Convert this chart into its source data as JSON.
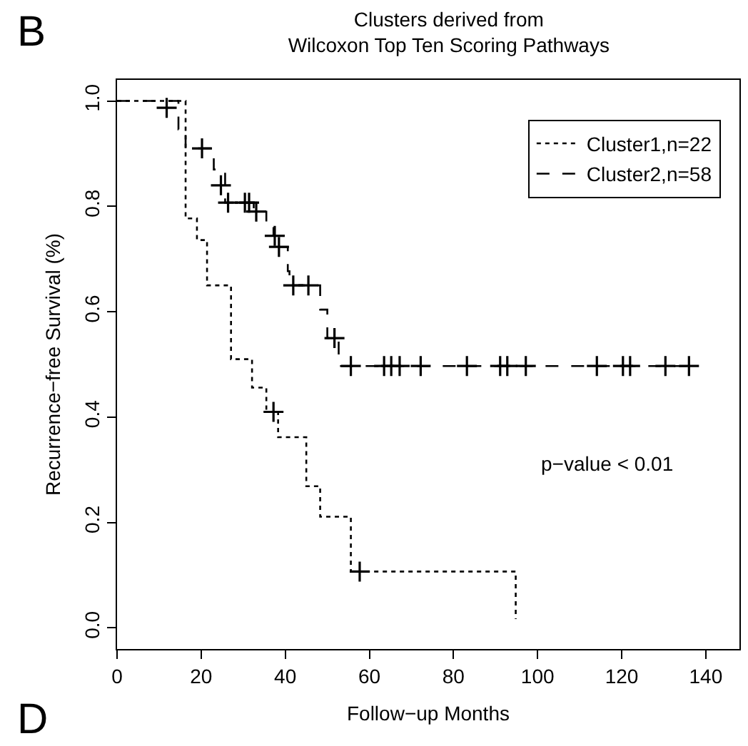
{
  "chart_data": {
    "type": "step",
    "title": "Clusters derived from\nWilcoxon Top Ten Scoring Pathways",
    "xlabel": "Follow−up Months",
    "ylabel": "Recurrence−free Survival (%)",
    "series": [
      {
        "name": "Cluster1,n=22",
        "color": "#000000",
        "line_style": "dotted",
        "marker": "none",
        "x": [
          0,
          16.3,
          19,
          21.4,
          27.1,
          32.1,
          35.5,
          38.3,
          45,
          48.3,
          55.6,
          94.8
        ],
        "values": [
          1,
          0.777,
          0.736,
          0.65,
          0.51,
          0.456,
          0.41,
          0.362,
          0.269,
          0.211,
          0.107,
          0.017
        ]
      },
      {
        "name": "Cluster2,n=58",
        "color": "#000000",
        "line_style": "dashed",
        "marker": "none",
        "x": [
          0,
          14.6,
          16.3,
          23,
          25.7,
          32.5,
          35.5,
          37.2,
          38.2,
          40.6,
          41,
          48.3,
          50,
          52.7,
          136
        ],
        "values": [
          1,
          0.946,
          0.91,
          0.87,
          0.807,
          0.79,
          0.771,
          0.744,
          0.723,
          0.677,
          0.65,
          0.604,
          0.55,
          0.497,
          0.497
        ]
      },
      {
        "type": "scatter",
        "color": "#000000",
        "marker": "cross",
        "x": [
          37.2,
          57.7
        ],
        "values": [
          0.41,
          0.107
        ]
      },
      {
        "type": "scatter",
        "color": "#000000",
        "marker": "cross",
        "x": [
          11.8,
          20.2,
          24.7,
          26.4,
          30.4,
          31.4,
          33.1,
          37.5,
          38.5,
          41.9,
          45.5,
          51.7,
          55.6,
          63.5,
          65.2,
          67.2,
          72.2,
          83.2,
          91.1,
          92.8,
          97.2,
          114.1,
          120.3,
          122,
          130.4,
          136
        ],
        "values": [
          0.987,
          0.91,
          0.84,
          0.807,
          0.807,
          0.807,
          0.79,
          0.744,
          0.723,
          0.65,
          0.65,
          0.55,
          0.497,
          0.497,
          0.497,
          0.497,
          0.497,
          0.497,
          0.497,
          0.497,
          0.497,
          0.497,
          0.497,
          0.497,
          0.497,
          0.497
        ]
      }
    ],
    "xlim": [
      0,
      148
    ],
    "xticks": [
      0,
      20,
      40,
      60,
      80,
      100,
      120,
      140
    ],
    "ylim": [
      -0.04,
      1.04
    ],
    "yticks": [
      {
        "value": 0,
        "label": "0.0"
      },
      {
        "value": 0.2,
        "label": "0.2"
      },
      {
        "value": 0.4,
        "label": "0.4"
      },
      {
        "value": 0.6,
        "label": "0.6"
      },
      {
        "value": 0.8,
        "label": "0.8"
      },
      {
        "value": 1,
        "label": "1.0"
      }
    ],
    "legend": "top right",
    "annotations": [
      "p−value < 0.01",
      "B",
      "D"
    ]
  }
}
